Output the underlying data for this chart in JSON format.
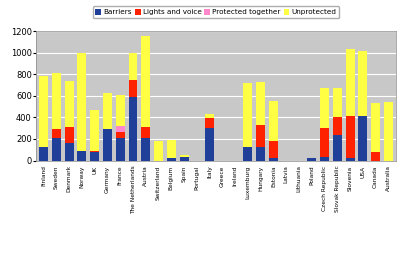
{
  "countries": [
    "Finland",
    "Sweden",
    "Denmark",
    "Norway",
    "UK",
    "Germany",
    "France",
    "The Netherlands",
    "Austria",
    "Switzerland",
    "Belgium",
    "Spain",
    "Portugal",
    "Italy",
    "Greece",
    "Ireland",
    "Luxemburg",
    "Hungary",
    "Estonia",
    "Latvia",
    "Lithuania",
    "Poland",
    "Czech Republic",
    "Slovak Republic",
    "Slovenia",
    "USA",
    "Canada",
    "Australia"
  ],
  "barriers": [
    130,
    210,
    165,
    90,
    75,
    290,
    210,
    590,
    210,
    0,
    25,
    30,
    0,
    305,
    0,
    0,
    130,
    130,
    20,
    0,
    0,
    25,
    30,
    240,
    20,
    415,
    0,
    0
  ],
  "lights_and_voice": [
    0,
    80,
    150,
    0,
    15,
    0,
    55,
    155,
    105,
    0,
    0,
    0,
    0,
    85,
    0,
    0,
    0,
    200,
    160,
    0,
    0,
    0,
    270,
    160,
    395,
    0,
    75,
    0
  ],
  "protected_together": [
    0,
    0,
    0,
    0,
    0,
    0,
    55,
    0,
    0,
    0,
    0,
    0,
    0,
    0,
    0,
    0,
    0,
    0,
    0,
    0,
    0,
    0,
    0,
    0,
    0,
    0,
    0,
    0
  ],
  "unprotected": [
    650,
    520,
    420,
    910,
    375,
    340,
    290,
    255,
    835,
    180,
    165,
    20,
    0,
    45,
    0,
    0,
    590,
    400,
    375,
    0,
    0,
    0,
    370,
    270,
    615,
    600,
    455,
    540
  ],
  "colors": {
    "barriers": "#1F3F99",
    "lights_and_voice": "#FF2200",
    "protected_together": "#FF88CC",
    "unprotected": "#FFFF44"
  },
  "ylim": [
    0,
    1200
  ],
  "yticks": [
    0,
    200,
    400,
    600,
    800,
    1000,
    1200
  ],
  "background_color": "#C8C8C8",
  "legend_labels": [
    "Barriers",
    "Lights and voice",
    "Protected together",
    "Unprotected"
  ]
}
